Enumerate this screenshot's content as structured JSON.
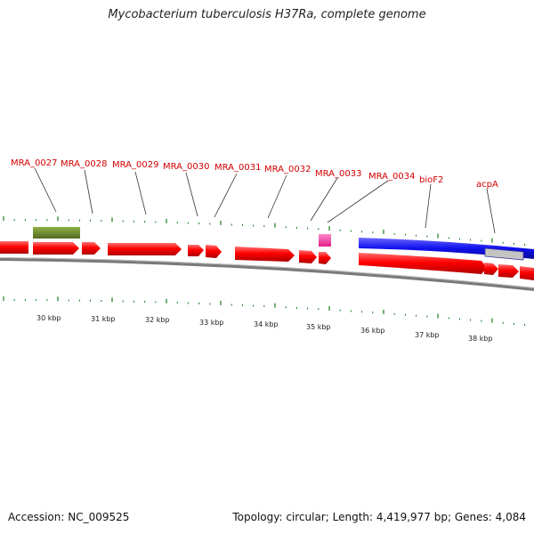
{
  "title": "Mycobacterium tuberculosis H37Ra, complete genome",
  "footer": {
    "accession": "Accession: NC_009525",
    "topology": "Topology: circular",
    "length": "Length: 4,419,977 bp",
    "genes": "Genes: 4,084"
  },
  "gene_labels": [
    "MRA_0027",
    "MRA_0028",
    "MRA_0029",
    "MRA_0030",
    "MRA_0031",
    "MRA_0032",
    "MRA_0033",
    "MRA_0034",
    "bioF2",
    "acpA"
  ],
  "kbp_labels": [
    "30 kbp",
    "31 kbp",
    "32 kbp",
    "33 kbp",
    "34 kbp",
    "35 kbp",
    "36 kbp",
    "37 kbp",
    "38 kbp"
  ],
  "colors": {
    "cds": "#ff0000",
    "rrna": "#3333cc",
    "gene_highlight": "#6b8e23",
    "misc_feature": "#ff44aa",
    "tick": "#1a7a1a",
    "label": "#d40000",
    "backbone": "#777777",
    "region": "#c0c0c0"
  }
}
